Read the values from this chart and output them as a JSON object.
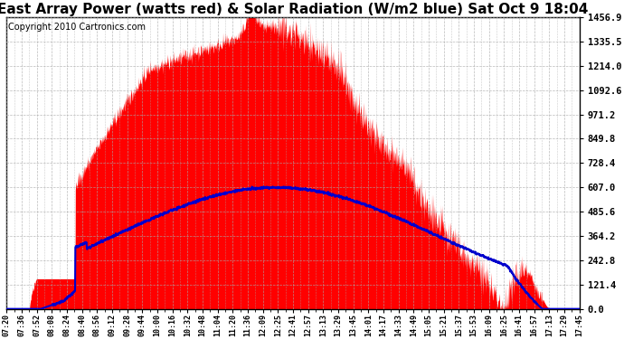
{
  "title": "East Array Power (watts red) & Solar Radiation (W/m2 blue) Sat Oct 9 18:04",
  "copyright": "Copyright 2010 Cartronics.com",
  "yticks": [
    0.0,
    121.4,
    242.8,
    364.2,
    485.6,
    607.0,
    728.4,
    849.8,
    971.2,
    1092.6,
    1214.0,
    1335.5,
    1456.9
  ],
  "ymax": 1456.9,
  "xtick_labels": [
    "07:20",
    "07:36",
    "07:52",
    "08:08",
    "08:24",
    "08:40",
    "08:56",
    "09:12",
    "09:28",
    "09:44",
    "10:00",
    "10:16",
    "10:32",
    "10:48",
    "11:04",
    "11:20",
    "11:36",
    "12:09",
    "12:25",
    "12:41",
    "12:57",
    "13:13",
    "13:29",
    "13:45",
    "14:01",
    "14:17",
    "14:33",
    "14:49",
    "15:05",
    "15:21",
    "15:37",
    "15:53",
    "16:09",
    "16:25",
    "16:41",
    "16:57",
    "17:13",
    "17:29",
    "17:45"
  ],
  "bg_color": "#ffffff",
  "grid_color": "#aaaaaa",
  "fill_color": "#ff0000",
  "line_color": "#0000cc",
  "title_fontsize": 11,
  "copyright_fontsize": 7
}
